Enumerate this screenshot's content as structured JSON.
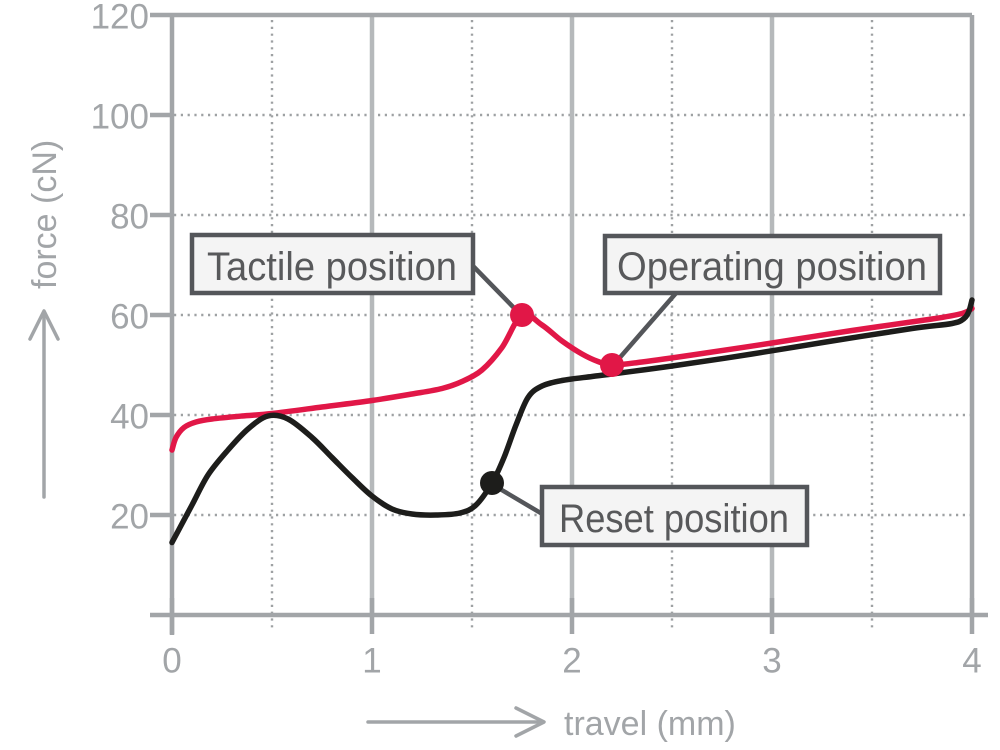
{
  "chart_data": {
    "type": "line",
    "title": "",
    "xlabel": "travel (mm)",
    "ylabel": "force (cN)",
    "xlim": [
      0,
      4
    ],
    "ylim": [
      0,
      120
    ],
    "xticks": [
      0,
      1,
      2,
      3,
      4
    ],
    "yticks": [
      20,
      40,
      60,
      80,
      100,
      120
    ],
    "x_gridlines_solid": [
      1,
      2,
      3
    ],
    "x_gridlines_dotted": [
      0.5,
      1.5,
      2.5,
      3.5
    ],
    "y_gridlines_dotted": [
      20,
      40,
      60,
      80,
      100
    ],
    "grid": "on",
    "legend": "none",
    "series": [
      {
        "name": "press-curve",
        "color": "#e11747",
        "points": [
          [
            0,
            33
          ],
          [
            0.02,
            35.5
          ],
          [
            0.06,
            37.5
          ],
          [
            0.12,
            38.6
          ],
          [
            0.2,
            39.2
          ],
          [
            0.35,
            39.8
          ],
          [
            0.5,
            40.3
          ],
          [
            0.75,
            41.6
          ],
          [
            1.0,
            42.9
          ],
          [
            1.2,
            44.2
          ],
          [
            1.35,
            45.3
          ],
          [
            1.45,
            46.7
          ],
          [
            1.55,
            49
          ],
          [
            1.65,
            53.5
          ],
          [
            1.75,
            60
          ],
          [
            1.85,
            58
          ],
          [
            1.95,
            54.8
          ],
          [
            2.05,
            52.2
          ],
          [
            2.13,
            50.7
          ],
          [
            2.2,
            50
          ],
          [
            2.35,
            50.6
          ],
          [
            2.6,
            52
          ],
          [
            3.0,
            54.4
          ],
          [
            3.4,
            56.9
          ],
          [
            3.8,
            59.2
          ],
          [
            3.95,
            60.3
          ],
          [
            4.0,
            61.3
          ]
        ]
      },
      {
        "name": "release-curve",
        "color": "#1d1d1b",
        "points": [
          [
            0,
            14.5
          ],
          [
            0.04,
            17.5
          ],
          [
            0.1,
            22
          ],
          [
            0.18,
            28
          ],
          [
            0.28,
            33
          ],
          [
            0.38,
            37.2
          ],
          [
            0.48,
            39.8
          ],
          [
            0.58,
            39.2
          ],
          [
            0.7,
            35.5
          ],
          [
            0.8,
            31.5
          ],
          [
            0.9,
            27.5
          ],
          [
            1.0,
            23.8
          ],
          [
            1.1,
            21.2
          ],
          [
            1.2,
            20.2
          ],
          [
            1.32,
            20
          ],
          [
            1.44,
            20.4
          ],
          [
            1.52,
            22
          ],
          [
            1.6,
            26.4
          ],
          [
            1.66,
            31.5
          ],
          [
            1.72,
            38
          ],
          [
            1.78,
            43.5
          ],
          [
            1.85,
            45.8
          ],
          [
            1.95,
            46.9
          ],
          [
            2.1,
            47.7
          ],
          [
            2.2,
            48.2
          ],
          [
            2.5,
            49.8
          ],
          [
            2.9,
            52.2
          ],
          [
            3.3,
            54.8
          ],
          [
            3.7,
            57.3
          ],
          [
            3.9,
            58.3
          ],
          [
            3.96,
            59.3
          ],
          [
            3.985,
            60.8
          ],
          [
            4.0,
            63
          ]
        ]
      }
    ],
    "markers": [
      {
        "name": "tactile-position",
        "label": "Tactile position",
        "x": 1.75,
        "y": 60,
        "color": "#e11747"
      },
      {
        "name": "operating-position",
        "label": "Operating position",
        "x": 2.2,
        "y": 50,
        "color": "#e11747"
      },
      {
        "name": "reset-position",
        "label": "Reset position",
        "x": 1.6,
        "y": 26.4,
        "color": "#1d1d1b"
      }
    ]
  },
  "colors": {
    "press": "#e11747",
    "release": "#1d1d1b",
    "axis_gray": "#a2a5a8",
    "grid_solid": "#b6b9bb",
    "callout_dark": "#54565a",
    "callout_bg": "#f4f4f4"
  }
}
